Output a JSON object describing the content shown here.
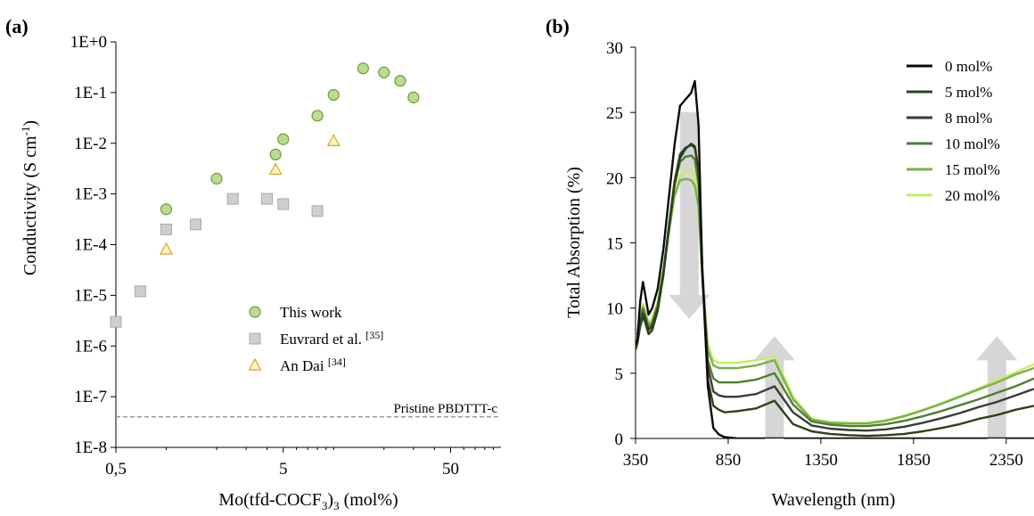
{
  "chart_data": [
    {
      "panel_label": "(a)",
      "type": "scatter",
      "xscale": "log",
      "yscale": "log",
      "xlim": [
        0.5,
        100
      ],
      "ylim": [
        1e-08,
        1
      ],
      "xticks": [
        0.5,
        5,
        50
      ],
      "xtick_labels": [
        "0,5",
        "5",
        "50"
      ],
      "yticks": [
        1e-08,
        1e-07,
        1e-06,
        1e-05,
        0.0001,
        0.001,
        0.01,
        0.1,
        1
      ],
      "ytick_labels": [
        "1E-8",
        "1E-7",
        "1E-6",
        "1E-5",
        "1E-4",
        "1E-3",
        "1E-2",
        "1E-1",
        "1E+0"
      ],
      "xlabel_main": "Mo(tfd-COCF",
      "xlabel_sub": "3",
      "xlabel_main2": ")",
      "xlabel_sub2": "3",
      "xlabel_end": " (mol%)",
      "ylabel_main": "Conductivity (S cm",
      "ylabel_sup": "-1",
      "ylabel_end": ")",
      "grid": false,
      "legend_position": "lower-center",
      "series": [
        {
          "name": "This work",
          "marker": "circle",
          "fill": "#b9dd90",
          "stroke": "#6f9a3c",
          "x": [
            1,
            2,
            4.5,
            5,
            8,
            10,
            15,
            20,
            25,
            30
          ],
          "y": [
            0.0005,
            0.002,
            0.006,
            0.012,
            0.035,
            0.09,
            0.3,
            0.25,
            0.17,
            0.08
          ]
        },
        {
          "name": "Euvrard et al. ",
          "name_sup": "[35]",
          "marker": "square",
          "fill": "#cfcfcf",
          "stroke": "#a9a9a9",
          "x": [
            0.5,
            0.7,
            1,
            1.5,
            2.5,
            4,
            5,
            8
          ],
          "y": [
            3e-06,
            1.2e-05,
            0.0002,
            0.00025,
            0.0008,
            0.0008,
            0.00063,
            0.00046
          ]
        },
        {
          "name": "An Dai ",
          "name_sup": "[34]",
          "marker": "triangle",
          "fill": "#fff2c4",
          "stroke": "#d4a623",
          "x": [
            1,
            4.5,
            10
          ],
          "y": [
            8e-05,
            0.003,
            0.011
          ]
        }
      ],
      "reference_line": {
        "label": "Pristine PBDTTT-c",
        "y": 4e-08
      }
    },
    {
      "panel_label": "(b)",
      "type": "line",
      "xlim": [
        350,
        2500
      ],
      "ylim": [
        0,
        30
      ],
      "xticks": [
        350,
        850,
        1350,
        1850,
        2350
      ],
      "yticks": [
        0,
        5,
        10,
        15,
        20,
        25,
        30
      ],
      "xlabel": "Wavelength (nm)",
      "ylabel": "Total Absorption (%)",
      "grid": false,
      "legend_position": "top-right",
      "series": [
        {
          "name": "0 mol%",
          "color": "#0b0b0b",
          "x": [
            350,
            360,
            375,
            390,
            400,
            420,
            440,
            470,
            500,
            530,
            560,
            590,
            620,
            650,
            670,
            690,
            710,
            740,
            770,
            800,
            830,
            900,
            1000,
            1100,
            1200,
            1300,
            1400,
            1500,
            1600,
            1700,
            1800,
            1900,
            2000,
            2100,
            2200,
            2300,
            2400,
            2500
          ],
          "y": [
            7.2,
            7.6,
            10.5,
            12.0,
            11.2,
            9.5,
            10.0,
            11.5,
            14.5,
            18.5,
            22.5,
            25.5,
            26.0,
            26.5,
            27.4,
            24.0,
            13.0,
            4.0,
            0.8,
            0.3,
            0.1,
            0,
            0,
            0,
            0,
            0,
            0,
            0,
            0,
            0,
            0,
            0,
            0,
            0,
            0,
            0,
            0,
            0
          ]
        },
        {
          "name": "5 mol%",
          "color": "#2b4318",
          "x": [
            350,
            360,
            375,
            390,
            400,
            420,
            440,
            470,
            500,
            530,
            560,
            590,
            620,
            650,
            670,
            690,
            710,
            740,
            770,
            800,
            830,
            900,
            1000,
            1100,
            1200,
            1300,
            1400,
            1500,
            1600,
            1700,
            1800,
            1900,
            2000,
            2100,
            2200,
            2300,
            2400,
            2500
          ],
          "y": [
            6.8,
            7.3,
            8.6,
            9.3,
            9.0,
            8.0,
            8.3,
            9.8,
            12.5,
            16.0,
            19.5,
            21.5,
            22.2,
            22.6,
            22.4,
            20.5,
            13.0,
            4.5,
            2.5,
            2.2,
            2.0,
            2.1,
            2.3,
            2.9,
            1.1,
            0.55,
            0.35,
            0.25,
            0.2,
            0.25,
            0.35,
            0.55,
            0.8,
            1.1,
            1.5,
            1.8,
            2.2,
            2.5
          ]
        },
        {
          "name": "8 mol%",
          "color": "#3a3a3a",
          "x": [
            350,
            360,
            375,
            390,
            400,
            420,
            440,
            470,
            500,
            530,
            560,
            590,
            620,
            650,
            670,
            690,
            710,
            740,
            770,
            800,
            830,
            900,
            1000,
            1100,
            1200,
            1300,
            1400,
            1500,
            1600,
            1700,
            1800,
            1900,
            2000,
            2100,
            2200,
            2300,
            2400,
            2500
          ],
          "y": [
            7.0,
            7.5,
            8.9,
            9.6,
            9.3,
            8.3,
            8.6,
            10.0,
            12.7,
            16.3,
            19.7,
            21.8,
            22.3,
            22.5,
            22.3,
            20.5,
            13.2,
            5.5,
            3.6,
            3.3,
            3.2,
            3.2,
            3.4,
            4.0,
            2.0,
            1.0,
            0.75,
            0.65,
            0.6,
            0.7,
            0.9,
            1.2,
            1.55,
            1.95,
            2.4,
            2.8,
            3.3,
            3.8
          ]
        },
        {
          "name": "10 mol%",
          "color": "#4f7e2f",
          "x": [
            350,
            360,
            375,
            390,
            400,
            420,
            440,
            470,
            500,
            530,
            560,
            590,
            620,
            650,
            670,
            690,
            710,
            740,
            770,
            800,
            830,
            900,
            1000,
            1100,
            1200,
            1300,
            1400,
            1500,
            1600,
            1700,
            1800,
            1900,
            2000,
            2100,
            2200,
            2300,
            2400,
            2500
          ],
          "y": [
            7.2,
            7.7,
            9.1,
            9.9,
            9.5,
            8.5,
            8.8,
            10.2,
            12.8,
            16.2,
            19.4,
            21.2,
            21.6,
            21.7,
            21.4,
            19.5,
            12.8,
            6.0,
            4.6,
            4.3,
            4.3,
            4.3,
            4.5,
            5.0,
            2.6,
            1.3,
            1.05,
            0.95,
            0.95,
            1.1,
            1.35,
            1.7,
            2.1,
            2.55,
            3.0,
            3.5,
            4.0,
            4.6
          ]
        },
        {
          "name": "15 mol%",
          "color": "#78b14a",
          "x": [
            350,
            360,
            375,
            390,
            400,
            420,
            440,
            470,
            500,
            530,
            560,
            590,
            620,
            650,
            670,
            690,
            710,
            740,
            770,
            800,
            830,
            900,
            1000,
            1100,
            1200,
            1300,
            1400,
            1500,
            1600,
            1700,
            1800,
            1900,
            2000,
            2100,
            2200,
            2300,
            2400,
            2500
          ],
          "y": [
            7.4,
            7.9,
            9.3,
            10.1,
            9.7,
            8.7,
            9.0,
            10.3,
            12.8,
            15.8,
            18.6,
            19.8,
            19.9,
            19.8,
            19.4,
            17.8,
            12.2,
            6.8,
            5.6,
            5.4,
            5.4,
            5.4,
            5.6,
            6.0,
            3.0,
            1.45,
            1.2,
            1.15,
            1.15,
            1.35,
            1.7,
            2.15,
            2.65,
            3.2,
            3.75,
            4.3,
            4.9,
            5.4
          ]
        },
        {
          "name": "20 mol%",
          "color": "#c4ec62",
          "x": [
            350,
            360,
            375,
            390,
            400,
            420,
            440,
            470,
            500,
            530,
            560,
            590,
            620,
            650,
            670,
            690,
            710,
            740,
            770,
            800,
            830,
            900,
            1000,
            1100,
            1200,
            1300,
            1400,
            1500,
            1600,
            1700,
            1800,
            1900,
            2000,
            2100,
            2200,
            2300,
            2400,
            2500
          ],
          "y": [
            7.6,
            8.1,
            9.5,
            10.3,
            9.9,
            8.9,
            9.2,
            10.5,
            13.0,
            16.0,
            18.8,
            20.2,
            20.5,
            20.5,
            20.2,
            18.4,
            12.6,
            7.2,
            6.0,
            5.8,
            5.8,
            5.8,
            6.0,
            6.3,
            3.2,
            1.5,
            1.25,
            1.2,
            1.2,
            1.4,
            1.75,
            2.2,
            2.7,
            3.25,
            3.85,
            4.45,
            5.05,
            5.7
          ]
        }
      ],
      "arrows": [
        {
          "direction": "down",
          "x": 640,
          "y_from": 25,
          "y_to": 9.2
        },
        {
          "direction": "up",
          "x": 1100,
          "y_from": 0,
          "y_to": 7.8
        },
        {
          "direction": "up",
          "x": 2300,
          "y_from": 0,
          "y_to": 7.8
        }
      ]
    }
  ]
}
